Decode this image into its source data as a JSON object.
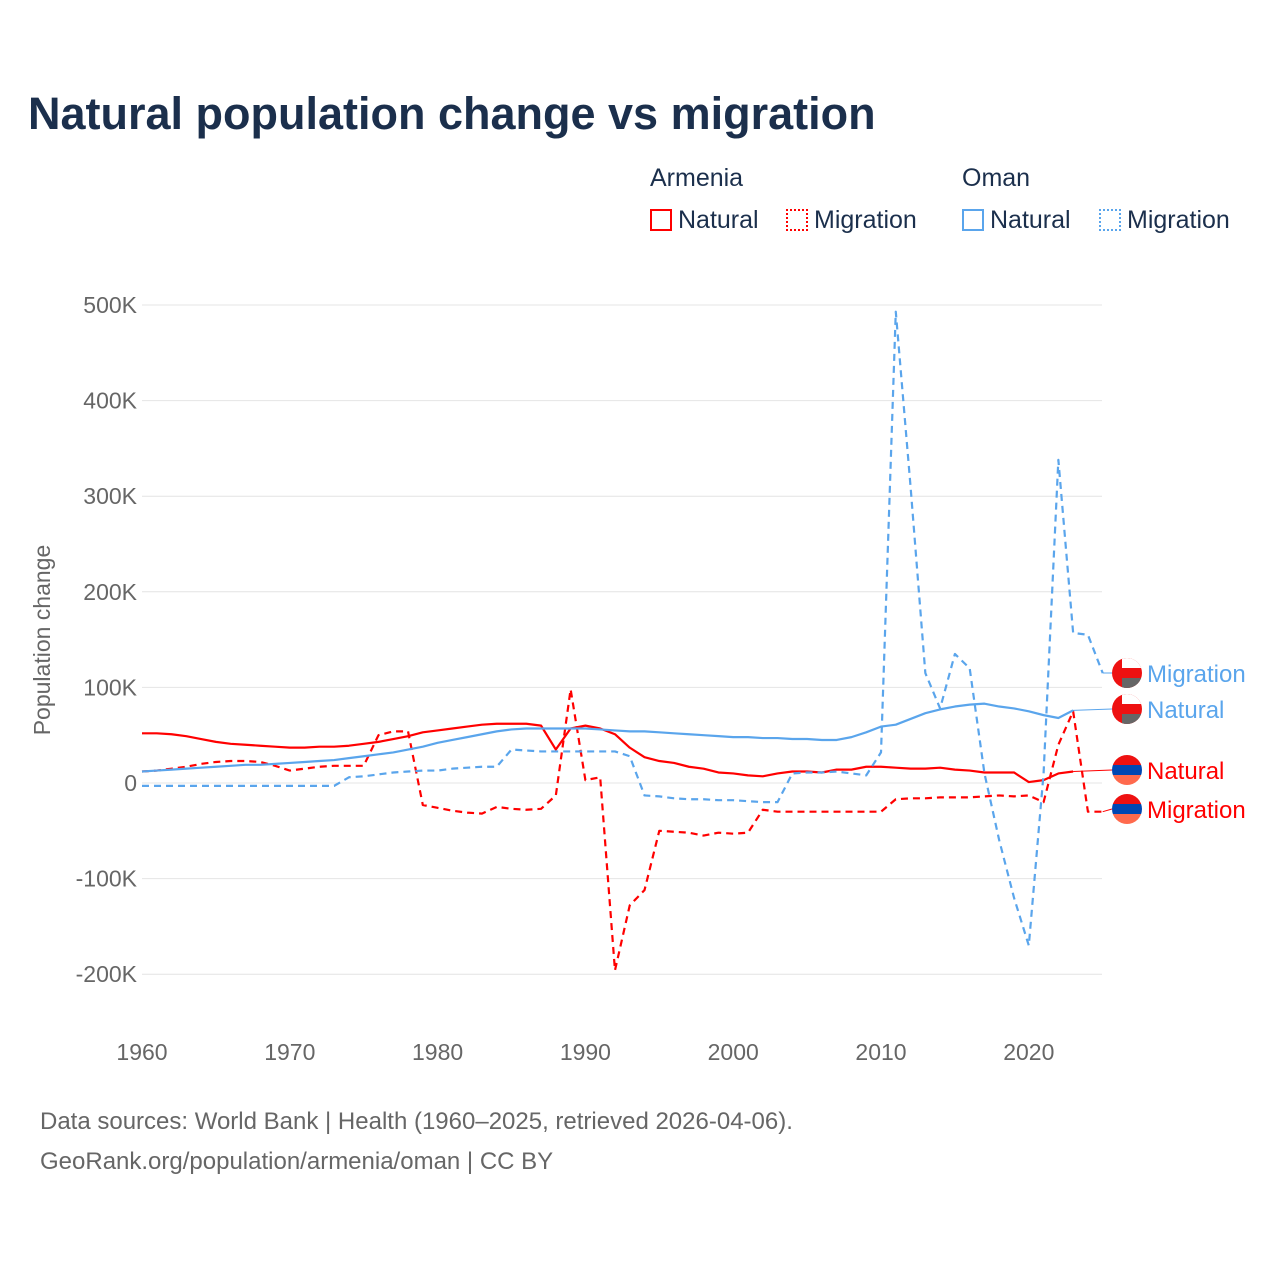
{
  "title": "Natural population change vs migration",
  "legend": {
    "groups": [
      {
        "name": "Armenia",
        "color": "#ff0000",
        "items": [
          "Natural",
          "Migration"
        ]
      },
      {
        "name": "Oman",
        "color": "#5aa5ec",
        "items": [
          "Natural",
          "Migration"
        ]
      }
    ]
  },
  "footer": {
    "line1": "Data sources: World Bank | Health (1960–2025, retrieved 2026-04-06).",
    "line2": "GeoRank.org/population/armenia/oman | CC BY"
  },
  "chart_data": {
    "type": "line",
    "title": "Natural population change vs migration",
    "xlabel": "",
    "ylabel": "Population change",
    "xlim": [
      1960,
      2025
    ],
    "ylim": [
      -200000,
      500000
    ],
    "x_ticks": [
      "1960",
      "1970",
      "1980",
      "1990",
      "2000",
      "2010",
      "2020"
    ],
    "y_ticks": [
      {
        "v": 500000,
        "label": "500K"
      },
      {
        "v": 400000,
        "label": "400K"
      },
      {
        "v": 300000,
        "label": "300K"
      },
      {
        "v": 200000,
        "label": "200K"
      },
      {
        "v": 100000,
        "label": "100K"
      },
      {
        "v": 0,
        "label": "0"
      },
      {
        "v": -100000,
        "label": "-100K"
      },
      {
        "v": -200000,
        "label": "-200K"
      }
    ],
    "grid": true,
    "start_year": 1960,
    "unit": "thousands",
    "series": [
      {
        "name": "Armenia Natural",
        "end_label": "Natural",
        "color": "#ff0000",
        "dashed": false,
        "values": [
          52,
          52,
          51,
          49,
          46,
          43,
          41,
          40,
          39,
          38,
          37,
          37,
          38,
          38,
          39,
          41,
          43,
          46,
          49,
          53,
          55,
          57,
          59,
          61,
          62,
          62,
          62,
          60,
          35,
          57,
          60,
          57,
          51,
          37,
          27,
          23,
          21,
          17,
          15,
          11,
          10,
          8,
          7,
          10,
          12,
          12,
          11,
          14,
          14,
          17,
          17,
          16,
          15,
          15,
          16,
          14,
          13,
          11,
          11,
          11,
          1,
          3,
          10,
          12
        ]
      },
      {
        "name": "Armenia Migration",
        "end_label": "Migration",
        "color": "#ff0000",
        "dashed": true,
        "values": [
          12,
          13,
          15,
          17,
          20,
          22,
          23,
          23,
          22,
          18,
          13,
          15,
          17,
          18,
          18,
          18,
          50,
          54,
          54,
          -23,
          -26,
          -29,
          -31,
          -32,
          -25,
          -27,
          -28,
          -27,
          -13,
          98,
          3,
          6,
          -196,
          -128,
          -112,
          -50,
          -51,
          -52,
          -55,
          -52,
          -53,
          -52,
          -28,
          -30,
          -30,
          -30,
          -30,
          -30,
          -30,
          -30,
          -30,
          -17,
          -16,
          -16,
          -15,
          -15,
          -15,
          -14,
          -13,
          -14,
          -13,
          -20,
          40,
          75,
          -30,
          -30
        ]
      },
      {
        "name": "Oman Natural",
        "end_label": "Natural",
        "color": "#5aa5ec",
        "dashed": false,
        "values": [
          12,
          13,
          14,
          15,
          16,
          17,
          18,
          19,
          19,
          20,
          21,
          22,
          23,
          24,
          26,
          28,
          30,
          32,
          35,
          38,
          42,
          45,
          48,
          51,
          54,
          56,
          57,
          57,
          57,
          57,
          57,
          56,
          55,
          54,
          54,
          53,
          52,
          51,
          50,
          49,
          48,
          48,
          47,
          47,
          46,
          46,
          45,
          45,
          48,
          53,
          59,
          61,
          67,
          73,
          77,
          80,
          82,
          83,
          80,
          78,
          75,
          71,
          68,
          76
        ]
      },
      {
        "name": "Oman Migration",
        "end_label": "Migration",
        "color": "#5aa5ec",
        "dashed": true,
        "values": [
          -3,
          -3,
          -3,
          -3,
          -3,
          -3,
          -3,
          -3,
          -3,
          -3,
          -3,
          -3,
          -3,
          -3,
          6,
          7,
          9,
          11,
          12,
          13,
          13,
          15,
          16,
          17,
          17,
          35,
          34,
          33,
          33,
          33,
          33,
          33,
          33,
          28,
          -13,
          -14,
          -16,
          -17,
          -17,
          -18,
          -18,
          -19,
          -20,
          -20,
          10,
          11,
          11,
          12,
          10,
          8,
          32,
          493,
          310,
          115,
          78,
          135,
          120,
          10,
          -60,
          -120,
          -170,
          10,
          338,
          157,
          155,
          115
        ]
      }
    ]
  }
}
